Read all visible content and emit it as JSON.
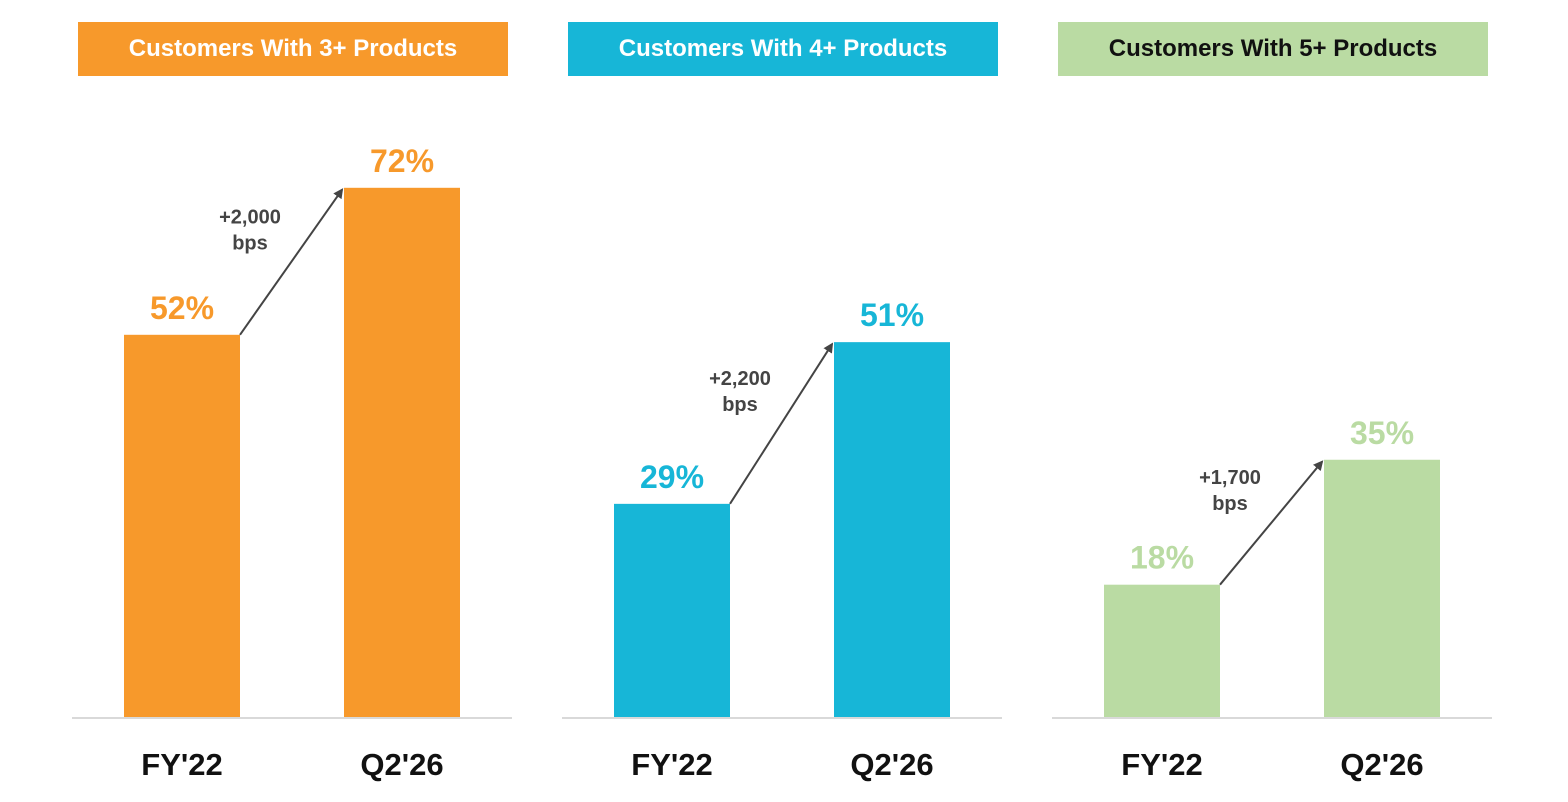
{
  "chart_data": [
    {
      "type": "bar",
      "title": "Customers With 3+ Products",
      "header_color": "#F7992B",
      "header_text_color": "#FFFFFF",
      "bar_color": "#F7992B",
      "label_color": "#F7992B",
      "categories": [
        "FY'22",
        "Q2'26"
      ],
      "values": [
        52,
        72
      ],
      "value_labels": [
        "52%",
        "72%"
      ],
      "change_label": [
        "+2,000",
        "bps"
      ],
      "ylim": [
        0,
        100
      ]
    },
    {
      "type": "bar",
      "title": "Customers With 4+ Products",
      "header_color": "#17B6D7",
      "header_text_color": "#FFFFFF",
      "bar_color": "#17B6D7",
      "label_color": "#17B6D7",
      "categories": [
        "FY'22",
        "Q2'26"
      ],
      "values": [
        29,
        51
      ],
      "value_labels": [
        "29%",
        "51%"
      ],
      "change_label": [
        "+2,200",
        "bps"
      ],
      "ylim": [
        0,
        100
      ]
    },
    {
      "type": "bar",
      "title": "Customers With 5+ Products",
      "header_color": "#BADBA3",
      "header_text_color": "#111111",
      "bar_color": "#BADBA3",
      "label_color": "#BADBA3",
      "categories": [
        "FY'22",
        "Q2'26"
      ],
      "values": [
        18,
        35
      ],
      "value_labels": [
        "18%",
        "35%"
      ],
      "change_label": [
        "+1,700",
        "bps"
      ],
      "ylim": [
        0,
        100
      ]
    }
  ]
}
